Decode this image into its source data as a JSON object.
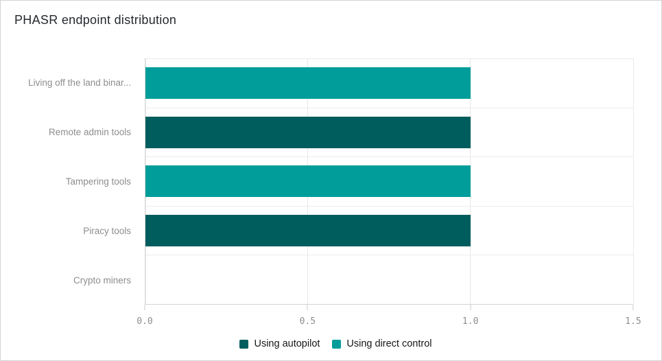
{
  "header": {
    "title": "PHASR endpoint distribution"
  },
  "colors": {
    "series_autopilot": "#005d5d",
    "series_direct_control": "#009d9a",
    "gridline": "#e7e7e7",
    "axis_line": "#d4d4d4",
    "tick_mark": "#c9c9c9",
    "axis_label": "#8d8d8d",
    "title_text": "#24292e",
    "legend_text": "#161616",
    "card_border": "#d2d2d2",
    "background": "#ffffff"
  },
  "chart_data": {
    "type": "bar",
    "orientation": "horizontal",
    "title": "PHASR endpoint distribution",
    "categories": [
      "Living off the land binar...",
      "Remote admin tools",
      "Tampering tools",
      "Piracy tools",
      "Crypto miners"
    ],
    "series": [
      {
        "name": "Using autopilot",
        "color": "#005d5d",
        "values": [
          0,
          1,
          0,
          1,
          0
        ]
      },
      {
        "name": "Using direct control",
        "color": "#009d9a",
        "values": [
          1,
          0,
          1,
          0,
          0
        ]
      }
    ],
    "xlabel": "",
    "ylabel": "",
    "xlim": [
      0,
      1.5
    ],
    "x_ticks": [
      {
        "label": "0.0",
        "value": 0.0
      },
      {
        "label": "0.5",
        "value": 0.5
      },
      {
        "label": "1.0",
        "value": 1.0
      },
      {
        "label": "1.5",
        "value": 1.5
      }
    ],
    "grid": true,
    "legend_position": "bottom"
  }
}
